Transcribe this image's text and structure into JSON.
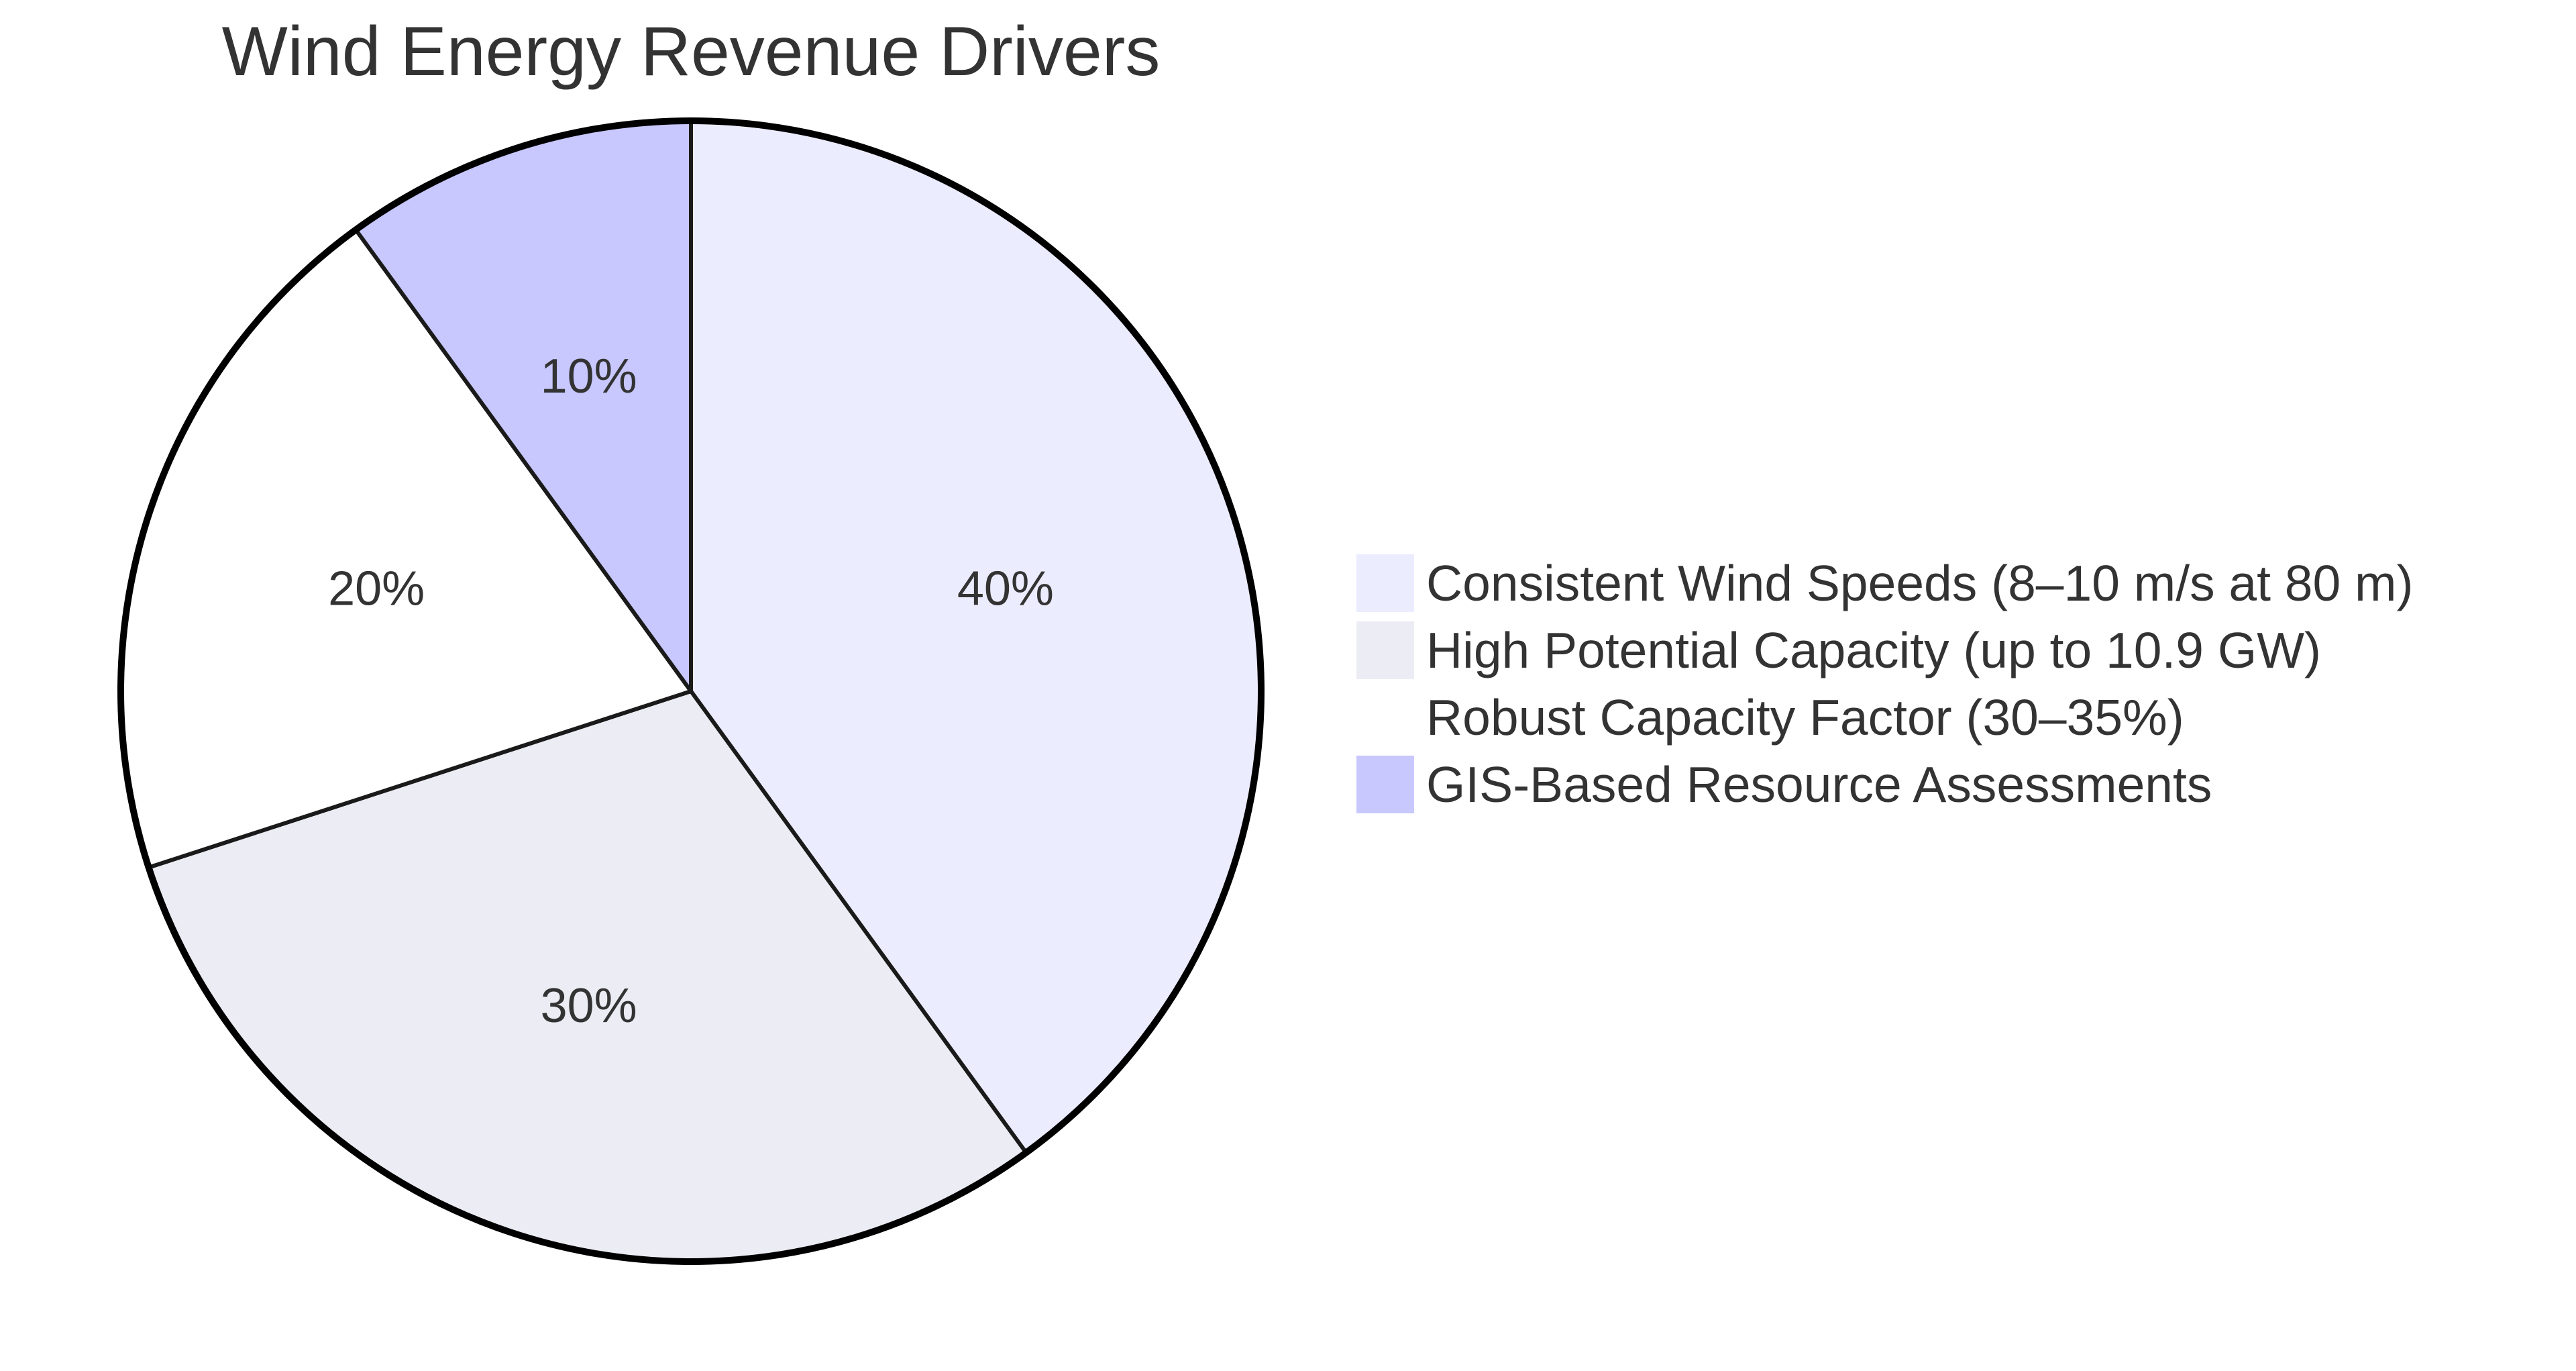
{
  "chart_data": {
    "type": "pie",
    "title": "Wind Energy Revenue Drivers",
    "legend_position": "right",
    "slices": [
      {
        "label": "Consistent Wind Speeds (8–10 m/s at 80 m)",
        "value": 40,
        "display": "40%",
        "color": "#ECECFF"
      },
      {
        "label": "High Potential Capacity (up to 10.9 GW)",
        "value": 30,
        "display": "30%",
        "color": "#ECECF4"
      },
      {
        "label": "Robust Capacity Factor (30–35%)",
        "value": 20,
        "display": "20%",
        "color": "#FFFFFF"
      },
      {
        "label": "GIS-Based Resource Assessments",
        "value": 10,
        "display": "10%",
        "color": "#C8C8FF"
      }
    ]
  }
}
